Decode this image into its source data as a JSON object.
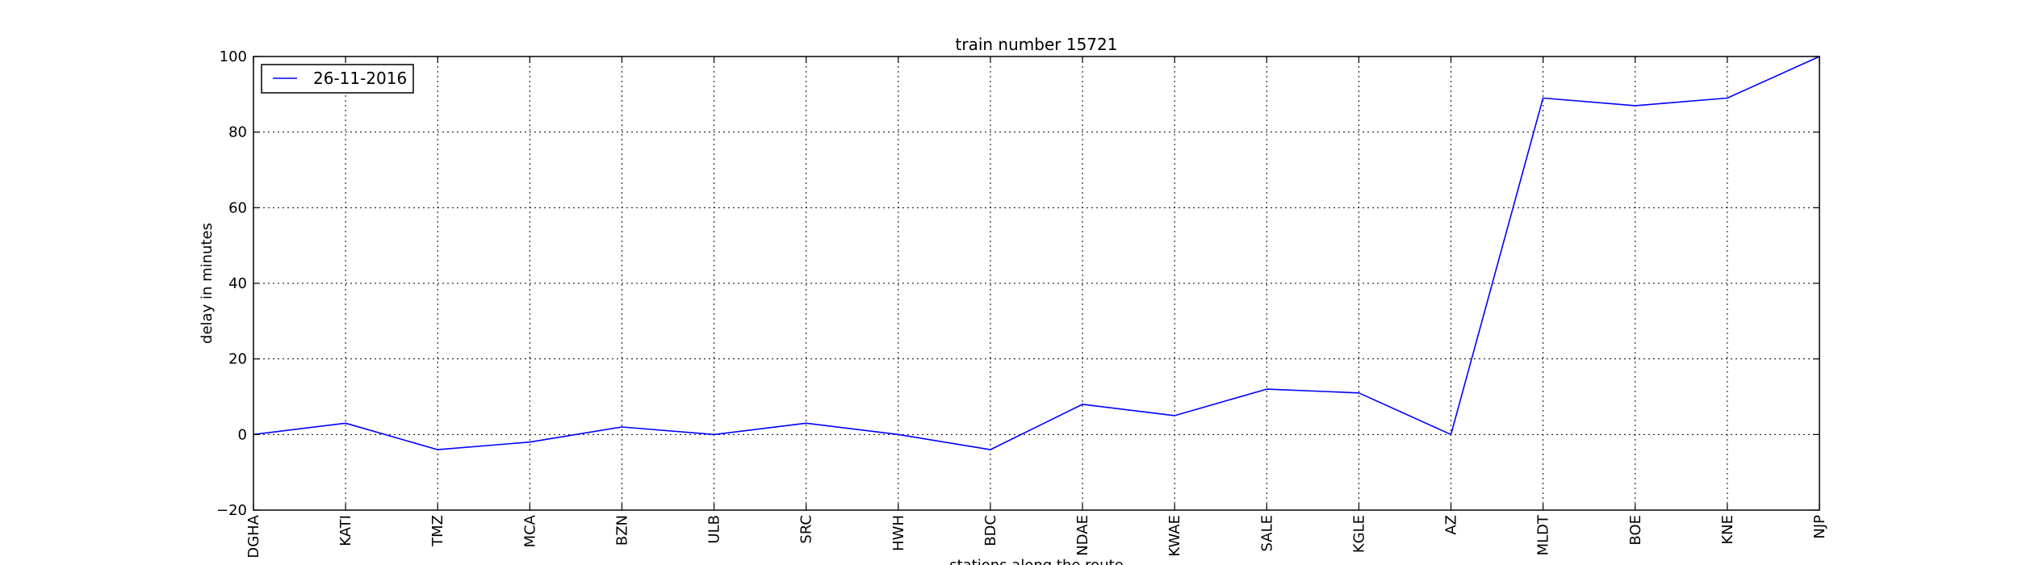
{
  "chart_data": {
    "type": "line",
    "title": "train number 15721",
    "xlabel": "stations along the route",
    "ylabel": "delay in minutes",
    "categories": [
      "DGHA",
      "KATI",
      "TMZ",
      "MCA",
      "BZN",
      "ULB",
      "SRC",
      "HWH",
      "BDC",
      "NDAE",
      "KWAE",
      "SALE",
      "KGLE",
      "AZ",
      "MLDT",
      "BOE",
      "KNE",
      "NJP"
    ],
    "series": [
      {
        "name": "26-11-2016",
        "color": "#0000ff",
        "values": [
          0,
          3,
          -4,
          -2,
          2,
          0,
          3,
          0,
          -4,
          8,
          5,
          12,
          11,
          0,
          89,
          87,
          89,
          100
        ]
      }
    ],
    "ylim": [
      -20,
      100
    ],
    "yticks": [
      "−20",
      "0",
      "20",
      "40",
      "60",
      "80",
      "100"
    ],
    "grid": true,
    "legend_position": "upper-left"
  }
}
